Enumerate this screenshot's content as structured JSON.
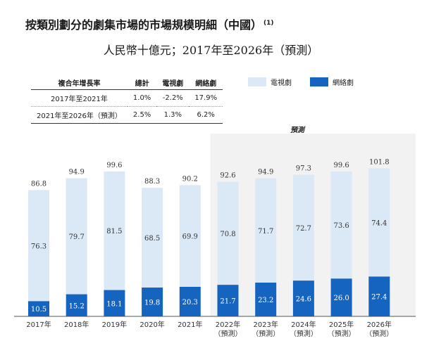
{
  "title": "按類別劃分的劇集市場的市場規模明細（中國）",
  "title_note": "(1)",
  "subtitle": "人民幣十億元；2017年至2026年（預測）",
  "cagr_table": {
    "headers": [
      "複合年增長率",
      "總計",
      "電視劇",
      "網絡劇"
    ],
    "rows": [
      [
        "2017年至2021年",
        "1.0%",
        "-2.2%",
        "17.9%"
      ],
      [
        "2021年至2026年（預測）",
        "2.5%",
        "1.3%",
        "6.2%"
      ]
    ]
  },
  "forecast_label": "預測",
  "colors": {
    "tv": "#dbe9f7",
    "online": "#1565c0",
    "forecast_bg": "#f2f2f2"
  },
  "chart_data": {
    "type": "bar",
    "stacked": true,
    "categories": [
      "2017年",
      "2018年",
      "2019年",
      "2020年",
      "2021年",
      "2022年",
      "2023年",
      "2024年",
      "2025年",
      "2026年"
    ],
    "category_notes": [
      "",
      "",
      "",
      "",
      "",
      "（預測）",
      "（預測）",
      "（預測）",
      "（預測）",
      "（預測）"
    ],
    "series": [
      {
        "name": "網絡劇",
        "values": [
          10.5,
          15.2,
          18.1,
          19.8,
          20.3,
          21.7,
          23.2,
          24.6,
          26.0,
          27.4
        ]
      },
      {
        "name": "電視劇",
        "values": [
          76.3,
          79.7,
          81.5,
          68.5,
          69.9,
          70.8,
          71.7,
          72.7,
          73.6,
          74.4
        ]
      }
    ],
    "totals": [
      86.8,
      94.9,
      99.6,
      88.3,
      90.2,
      92.6,
      94.9,
      97.3,
      99.6,
      101.8
    ],
    "forecast_from_index": 5,
    "legend_position": "top-right"
  }
}
